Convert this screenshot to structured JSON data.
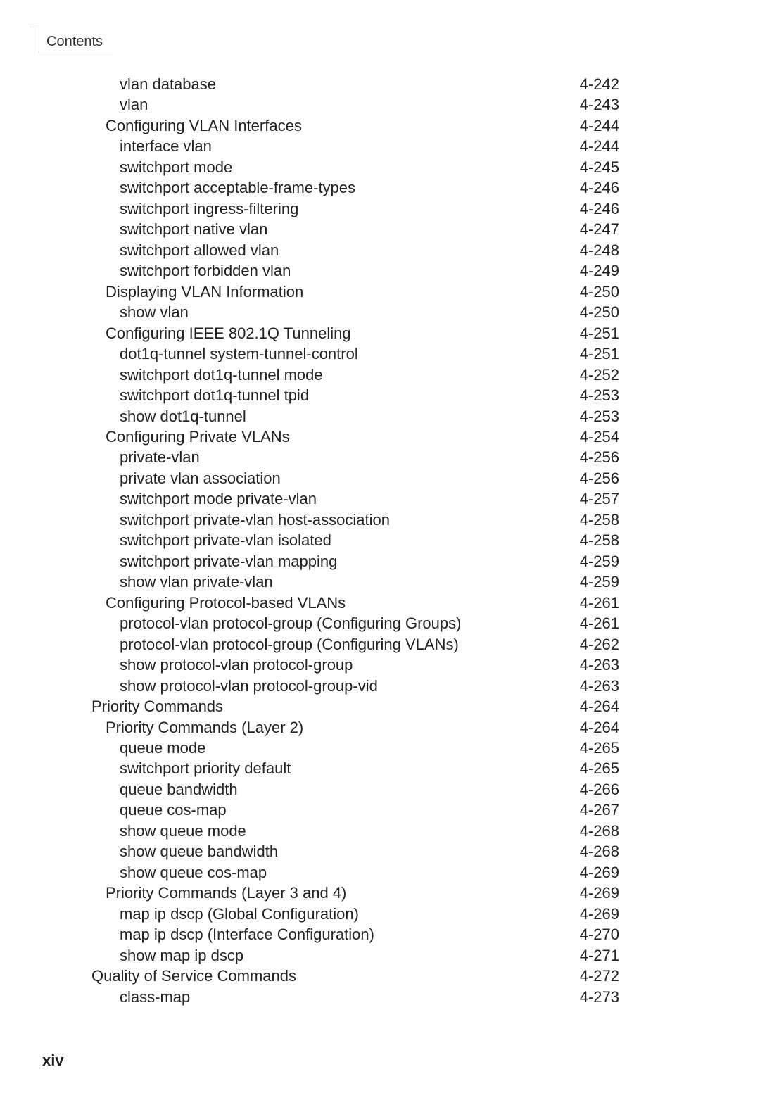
{
  "header": {
    "tab_label": "Contents"
  },
  "toc": {
    "items": [
      {
        "label": "vlan database",
        "page": "4-242",
        "indent": 3
      },
      {
        "label": "vlan",
        "page": "4-243",
        "indent": 3
      },
      {
        "label": "Configuring VLAN Interfaces",
        "page": "4-244",
        "indent": 2
      },
      {
        "label": "interface vlan",
        "page": "4-244",
        "indent": 3
      },
      {
        "label": "switchport mode",
        "page": "4-245",
        "indent": 3
      },
      {
        "label": "switchport acceptable-frame-types",
        "page": "4-246",
        "indent": 3
      },
      {
        "label": "switchport ingress-filtering",
        "page": "4-246",
        "indent": 3
      },
      {
        "label": "switchport native vlan",
        "page": "4-247",
        "indent": 3
      },
      {
        "label": "switchport allowed vlan",
        "page": "4-248",
        "indent": 3
      },
      {
        "label": "switchport forbidden vlan",
        "page": "4-249",
        "indent": 3
      },
      {
        "label": "Displaying VLAN Information",
        "page": "4-250",
        "indent": 2
      },
      {
        "label": "show vlan",
        "page": "4-250",
        "indent": 3
      },
      {
        "label": "Configuring IEEE 802.1Q Tunneling",
        "page": "4-251",
        "indent": 2
      },
      {
        "label": "dot1q-tunnel system-tunnel-control",
        "page": "4-251",
        "indent": 3
      },
      {
        "label": "switchport dot1q-tunnel mode",
        "page": "4-252",
        "indent": 3
      },
      {
        "label": "switchport dot1q-tunnel tpid",
        "page": "4-253",
        "indent": 3
      },
      {
        "label": "show dot1q-tunnel",
        "page": "4-253",
        "indent": 3
      },
      {
        "label": "Configuring Private VLANs",
        "page": "4-254",
        "indent": 2
      },
      {
        "label": "private-vlan",
        "page": "4-256",
        "indent": 3
      },
      {
        "label": "private vlan association",
        "page": "4-256",
        "indent": 3
      },
      {
        "label": "switchport mode private-vlan",
        "page": "4-257",
        "indent": 3
      },
      {
        "label": "switchport private-vlan host-association",
        "page": "4-258",
        "indent": 3
      },
      {
        "label": "switchport private-vlan isolated",
        "page": "4-258",
        "indent": 3
      },
      {
        "label": "switchport private-vlan mapping",
        "page": "4-259",
        "indent": 3
      },
      {
        "label": "show vlan private-vlan",
        "page": "4-259",
        "indent": 3
      },
      {
        "label": "Configuring Protocol-based VLANs",
        "page": "4-261",
        "indent": 2
      },
      {
        "label": "protocol-vlan protocol-group (Configuring Groups)",
        "page": "4-261",
        "indent": 3
      },
      {
        "label": "protocol-vlan protocol-group (Configuring VLANs)",
        "page": "4-262",
        "indent": 3
      },
      {
        "label": "show protocol-vlan protocol-group",
        "page": "4-263",
        "indent": 3
      },
      {
        "label": "show protocol-vlan protocol-group-vid",
        "page": "4-263",
        "indent": 3
      },
      {
        "label": "Priority Commands",
        "page": "4-264",
        "indent": 1
      },
      {
        "label": "Priority Commands (Layer 2)",
        "page": "4-264",
        "indent": 2
      },
      {
        "label": "queue mode",
        "page": "4-265",
        "indent": 3
      },
      {
        "label": "switchport priority default",
        "page": "4-265",
        "indent": 3
      },
      {
        "label": "queue bandwidth",
        "page": "4-266",
        "indent": 3
      },
      {
        "label": "queue cos-map",
        "page": "4-267",
        "indent": 3
      },
      {
        "label": "show queue mode",
        "page": "4-268",
        "indent": 3
      },
      {
        "label": "show queue bandwidth",
        "page": "4-268",
        "indent": 3
      },
      {
        "label": "show queue cos-map",
        "page": "4-269",
        "indent": 3
      },
      {
        "label": "Priority Commands (Layer 3 and 4)",
        "page": "4-269",
        "indent": 2
      },
      {
        "label": "map ip dscp (Global Configuration)",
        "page": "4-269",
        "indent": 3
      },
      {
        "label": "map ip dscp (Interface Configuration)",
        "page": "4-270",
        "indent": 3
      },
      {
        "label": "show map ip dscp",
        "page": "4-271",
        "indent": 3
      },
      {
        "label": "Quality of Service Commands",
        "page": "4-272",
        "indent": 1
      },
      {
        "label": "class-map",
        "page": "4-273",
        "indent": 3
      }
    ]
  },
  "footer": {
    "page_number": "xiv"
  }
}
